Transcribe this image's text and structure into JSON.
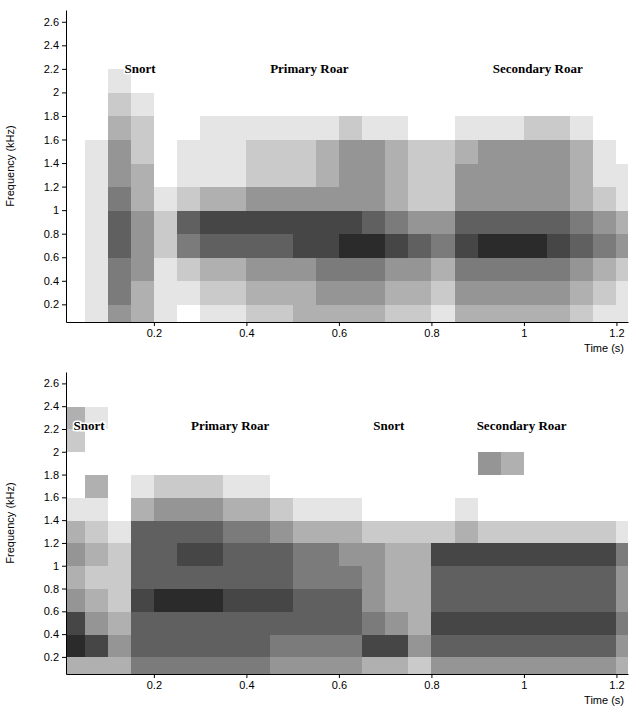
{
  "chart_data": [
    {
      "type": "heatmap",
      "x_label": "Time (s)",
      "y_label": "Frequency (kHz)",
      "xlim": [
        0.01,
        1.225
      ],
      "ylim": [
        0.05,
        2.7
      ],
      "xticks": [
        0.2,
        0.4,
        0.6,
        0.8,
        1,
        1.2
      ],
      "yticks": [
        0.2,
        0.4,
        0.6,
        0.8,
        1,
        1.2,
        1.4,
        1.6,
        1.8,
        2,
        2.2,
        2.4,
        2.6
      ],
      "x_edges": [
        0,
        0.05,
        0.1,
        0.15,
        0.2,
        0.25,
        0.3,
        0.35,
        0.4,
        0.45,
        0.5,
        0.55,
        0.6,
        0.65,
        0.7,
        0.75,
        0.8,
        0.85,
        0.9,
        0.95,
        1,
        1.05,
        1.1,
        1.15,
        1.2,
        1.25
      ],
      "y_edges": [
        0,
        0.2,
        0.4,
        0.6,
        0.8,
        1,
        1.2,
        1.4,
        1.6,
        1.8,
        2,
        2.2,
        2.4,
        2.6,
        2.8
      ],
      "zlim": [
        0,
        9
      ],
      "cells": [
        [
          0,
          1,
          4,
          3,
          1,
          0,
          1,
          1,
          2,
          2,
          3,
          3,
          3,
          3,
          2,
          2,
          1,
          3,
          3,
          3,
          3,
          3,
          2,
          1,
          1
        ],
        [
          0,
          1,
          5,
          3,
          1,
          1,
          2,
          2,
          3,
          3,
          3,
          4,
          4,
          4,
          3,
          3,
          2,
          4,
          4,
          4,
          4,
          4,
          3,
          2,
          1
        ],
        [
          0,
          1,
          5,
          4,
          1,
          2,
          3,
          3,
          4,
          4,
          4,
          5,
          5,
          5,
          4,
          4,
          3,
          5,
          5,
          5,
          5,
          5,
          4,
          3,
          2
        ],
        [
          0,
          1,
          6,
          4,
          2,
          5,
          6,
          6,
          6,
          6,
          7,
          7,
          8,
          8,
          7,
          6,
          5,
          7,
          8,
          8,
          8,
          7,
          6,
          5,
          4
        ],
        [
          0,
          1,
          6,
          4,
          2,
          6,
          7,
          7,
          7,
          7,
          7,
          7,
          7,
          6,
          5,
          4,
          4,
          6,
          6,
          6,
          6,
          6,
          5,
          4,
          3
        ],
        [
          0,
          1,
          5,
          3,
          1,
          2,
          3,
          3,
          4,
          4,
          4,
          4,
          4,
          4,
          3,
          2,
          2,
          4,
          4,
          4,
          4,
          4,
          3,
          2,
          1
        ],
        [
          0,
          1,
          4,
          3,
          0,
          1,
          1,
          1,
          2,
          2,
          2,
          3,
          4,
          4,
          3,
          2,
          2,
          4,
          4,
          4,
          4,
          4,
          3,
          1,
          1
        ],
        [
          0,
          1,
          4,
          2,
          0,
          1,
          1,
          1,
          2,
          2,
          2,
          3,
          4,
          4,
          3,
          2,
          2,
          3,
          4,
          4,
          4,
          4,
          3,
          1,
          0
        ],
        [
          0,
          0,
          3,
          2,
          0,
          0,
          1,
          1,
          1,
          1,
          1,
          1,
          2,
          1,
          1,
          0,
          0,
          1,
          1,
          1,
          2,
          2,
          1,
          0,
          0
        ],
        [
          0,
          0,
          2,
          1,
          0,
          0,
          0,
          0,
          0,
          0,
          0,
          0,
          0,
          0,
          0,
          0,
          0,
          0,
          0,
          0,
          0,
          0,
          0,
          0,
          0
        ],
        [
          0,
          0,
          1,
          0,
          0,
          0,
          0,
          0,
          0,
          0,
          0,
          0,
          0,
          0,
          0,
          0,
          0,
          0,
          0,
          0,
          0,
          0,
          0,
          0,
          0
        ],
        [
          0,
          0,
          0,
          0,
          0,
          0,
          0,
          0,
          0,
          0,
          0,
          0,
          0,
          0,
          0,
          0,
          0,
          0,
          0,
          0,
          0,
          0,
          0,
          0,
          0
        ],
        [
          0,
          0,
          0,
          0,
          0,
          0,
          0,
          0,
          0,
          0,
          0,
          0,
          0,
          0,
          0,
          0,
          0,
          0,
          0,
          0,
          0,
          0,
          0,
          0,
          0
        ],
        [
          0,
          0,
          0,
          0,
          0,
          0,
          0,
          0,
          0,
          0,
          0,
          0,
          0,
          0,
          0,
          0,
          0,
          0,
          0,
          0,
          0,
          0,
          0,
          0,
          0
        ]
      ],
      "annotations": [
        {
          "text": "Snort",
          "x": 0.17,
          "y": 2.19
        },
        {
          "text": "Primary Roar",
          "x": 0.536,
          "y": 2.19
        },
        {
          "text": "Secondary Roar",
          "x": 1.03,
          "y": 2.19
        }
      ]
    },
    {
      "type": "heatmap",
      "x_label": "Time (s)",
      "y_label": "Frequency (kHz)",
      "xlim": [
        0.01,
        1.225
      ],
      "ylim": [
        0.05,
        2.7
      ],
      "xticks": [
        0.2,
        0.4,
        0.6,
        0.8,
        1,
        1.2
      ],
      "yticks": [
        0.2,
        0.4,
        0.6,
        0.8,
        1,
        1.2,
        1.4,
        1.6,
        1.8,
        2,
        2.2,
        2.4,
        2.6
      ],
      "x_edges": [
        0,
        0.05,
        0.1,
        0.15,
        0.2,
        0.25,
        0.3,
        0.35,
        0.4,
        0.45,
        0.5,
        0.55,
        0.6,
        0.65,
        0.7,
        0.75,
        0.8,
        0.85,
        0.9,
        0.95,
        1,
        1.05,
        1.1,
        1.15,
        1.2,
        1.25
      ],
      "y_edges": [
        0,
        0.2,
        0.4,
        0.6,
        0.8,
        1,
        1.2,
        1.4,
        1.6,
        1.8,
        2,
        2.2,
        2.4,
        2.6,
        2.8
      ],
      "zlim": [
        0,
        9
      ],
      "cells": [
        [
          3,
          3,
          3,
          5,
          5,
          5,
          5,
          5,
          5,
          4,
          4,
          4,
          4,
          3,
          3,
          2,
          4,
          4,
          4,
          4,
          4,
          4,
          4,
          4,
          3
        ],
        [
          8,
          7,
          4,
          6,
          6,
          6,
          6,
          6,
          6,
          5,
          5,
          5,
          5,
          7,
          7,
          4,
          6,
          6,
          6,
          6,
          6,
          6,
          6,
          6,
          4
        ],
        [
          7,
          4,
          3,
          6,
          6,
          6,
          6,
          6,
          6,
          6,
          6,
          6,
          6,
          5,
          4,
          3,
          7,
          7,
          7,
          7,
          7,
          7,
          7,
          7,
          5
        ],
        [
          4,
          3,
          2,
          7,
          8,
          8,
          8,
          7,
          7,
          7,
          6,
          6,
          6,
          4,
          3,
          3,
          6,
          6,
          6,
          6,
          6,
          6,
          6,
          6,
          4
        ],
        [
          3,
          2,
          2,
          6,
          6,
          6,
          6,
          6,
          6,
          6,
          5,
          5,
          5,
          4,
          3,
          3,
          6,
          6,
          6,
          6,
          6,
          6,
          6,
          6,
          4
        ],
        [
          4,
          3,
          2,
          6,
          6,
          7,
          7,
          6,
          6,
          6,
          5,
          5,
          4,
          4,
          3,
          3,
          7,
          7,
          7,
          7,
          7,
          7,
          7,
          7,
          5
        ],
        [
          3,
          2,
          1,
          6,
          6,
          6,
          6,
          5,
          5,
          4,
          3,
          3,
          3,
          2,
          2,
          2,
          2,
          3,
          2,
          2,
          2,
          2,
          2,
          2,
          1
        ],
        [
          1,
          1,
          0,
          3,
          4,
          4,
          4,
          3,
          3,
          2,
          1,
          1,
          1,
          0,
          0,
          0,
          0,
          1,
          0,
          0,
          0,
          0,
          0,
          0,
          0
        ],
        [
          0,
          3,
          0,
          1,
          2,
          2,
          2,
          1,
          1,
          0,
          0,
          0,
          0,
          0,
          0,
          0,
          0,
          0,
          0,
          0,
          0,
          0,
          0,
          0,
          0
        ],
        [
          0,
          0,
          0,
          0,
          0,
          0,
          0,
          0,
          0,
          0,
          0,
          0,
          0,
          0,
          0,
          0,
          0,
          0,
          4,
          3,
          0,
          0,
          0,
          0,
          0
        ],
        [
          2,
          0,
          0,
          0,
          0,
          0,
          0,
          0,
          0,
          0,
          0,
          0,
          0,
          0,
          0,
          0,
          0,
          0,
          0,
          0,
          0,
          0,
          0,
          0,
          0
        ],
        [
          3,
          1,
          0,
          0,
          0,
          0,
          0,
          0,
          0,
          0,
          0,
          0,
          0,
          0,
          0,
          0,
          0,
          0,
          0,
          0,
          0,
          0,
          0,
          0,
          0
        ],
        [
          0,
          0,
          0,
          0,
          0,
          0,
          0,
          0,
          0,
          0,
          0,
          0,
          0,
          0,
          0,
          0,
          0,
          0,
          0,
          0,
          0,
          0,
          0,
          0,
          0
        ],
        [
          0,
          0,
          0,
          0,
          0,
          0,
          0,
          0,
          0,
          0,
          0,
          0,
          0,
          0,
          0,
          0,
          0,
          0,
          0,
          0,
          0,
          0,
          0,
          0,
          0
        ]
      ],
      "annotations": [
        {
          "text": "Snort",
          "x": 0.06,
          "y": 2.22
        },
        {
          "text": "Primary Roar",
          "x": 0.365,
          "y": 2.22
        },
        {
          "text": "Snort",
          "x": 0.708,
          "y": 2.22
        },
        {
          "text": "Secondary Roar",
          "x": 0.995,
          "y": 2.22
        }
      ]
    }
  ]
}
